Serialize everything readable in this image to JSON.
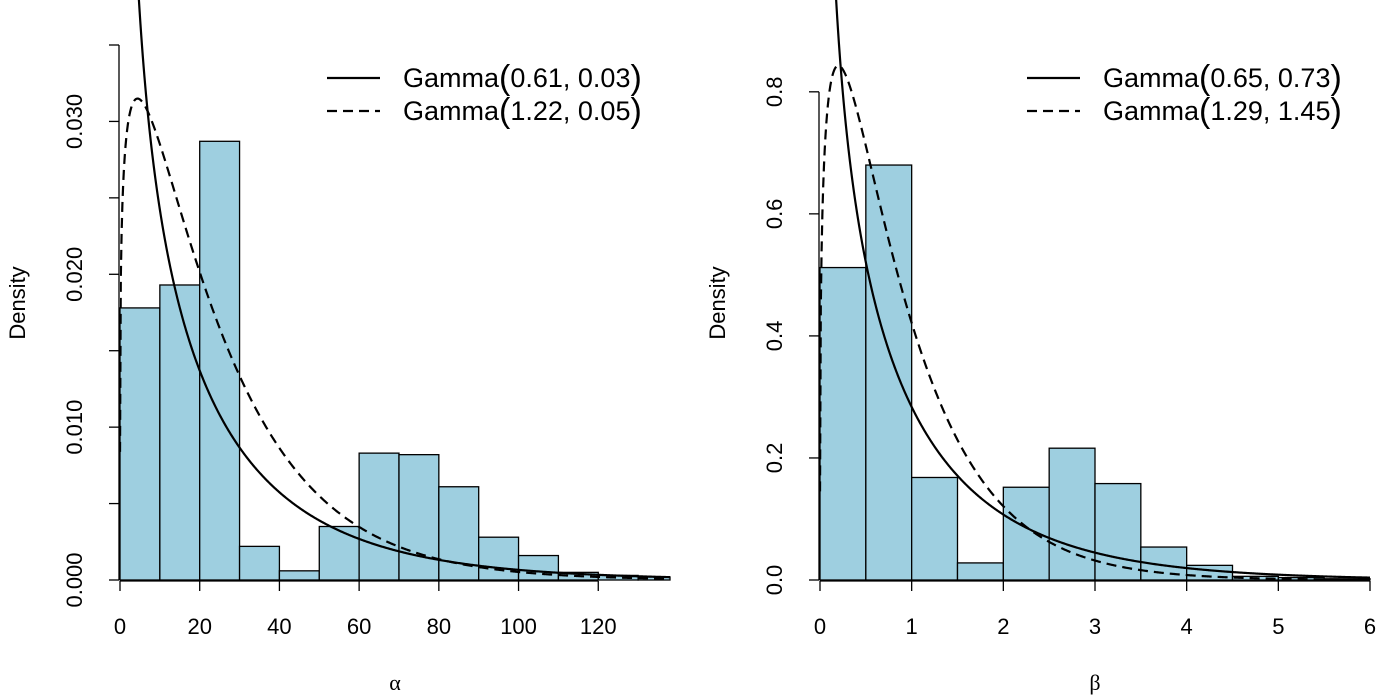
{
  "colors": {
    "bar_fill": "#9ecfe0",
    "bar_stroke": "#000000",
    "line": "#000000"
  },
  "chart_data": [
    {
      "type": "bar",
      "subtype": "histogram-with-density-curves",
      "xlabel": "α",
      "ylabel": "Density",
      "xlim": [
        0,
        138
      ],
      "ylim": [
        0,
        0.035
      ],
      "x_ticks": [
        0,
        20,
        40,
        60,
        80,
        100,
        120
      ],
      "x_tick_labels": [
        "0",
        "20",
        "40",
        "60",
        "80",
        "100",
        "120"
      ],
      "y_ticks": [
        0,
        0.005,
        0.01,
        0.015,
        0.02,
        0.025,
        0.03,
        0.035
      ],
      "y_tick_labels": [
        "0.000",
        "",
        "0.010",
        "",
        "0.020",
        "",
        "0.030",
        ""
      ],
      "bin_width": 10,
      "bin_starts": [
        0,
        10,
        20,
        30,
        40,
        50,
        60,
        70,
        80,
        90,
        100,
        110,
        120,
        130
      ],
      "values": [
        0.0178,
        0.0193,
        0.0287,
        0.0022,
        0.0006,
        0.0035,
        0.0083,
        0.0082,
        0.0061,
        0.0028,
        0.0016,
        0.0005,
        0.0003,
        0.0002
      ],
      "series": [
        {
          "name": "Gamma(0.61, 0.03)",
          "dist": "Gamma",
          "shape": 0.61,
          "rate": 0.03,
          "style": "solid"
        },
        {
          "name": "Gamma(1.22, 0.05)",
          "dist": "Gamma",
          "shape": 1.22,
          "rate": 0.05,
          "style": "dashed"
        }
      ],
      "legend": [
        {
          "prefix": "Gamma",
          "args": "0.61, 0.03"
        },
        {
          "prefix": "Gamma",
          "args": "1.22, 0.05"
        }
      ],
      "legend_position": "top-right"
    },
    {
      "type": "bar",
      "subtype": "histogram-with-density-curves",
      "xlabel": "β",
      "ylabel": "Density",
      "xlim": [
        0,
        6
      ],
      "ylim": [
        0,
        0.88
      ],
      "x_ticks": [
        0,
        1,
        2,
        3,
        4,
        5,
        6
      ],
      "x_tick_labels": [
        "0",
        "1",
        "2",
        "3",
        "4",
        "5",
        "6"
      ],
      "y_ticks": [
        0,
        0.2,
        0.4,
        0.6,
        0.8
      ],
      "y_tick_labels": [
        "0.0",
        "0.2",
        "0.4",
        "0.6",
        "0.8"
      ],
      "bin_width": 0.5,
      "bin_starts": [
        0,
        0.5,
        1,
        1.5,
        2,
        2.5,
        3,
        3.5,
        4,
        4.5,
        5,
        5.5
      ],
      "values": [
        0.512,
        0.68,
        0.168,
        0.028,
        0.152,
        0.216,
        0.158,
        0.054,
        0.024,
        0.006,
        0.004,
        0.002
      ],
      "series": [
        {
          "name": "Gamma(0.65, 0.73)",
          "dist": "Gamma",
          "shape": 0.65,
          "rate": 0.73,
          "style": "solid"
        },
        {
          "name": "Gamma(1.29, 1.45)",
          "dist": "Gamma",
          "shape": 1.29,
          "rate": 1.45,
          "style": "dashed"
        }
      ],
      "legend": [
        {
          "prefix": "Gamma",
          "args": "0.65, 0.73"
        },
        {
          "prefix": "Gamma",
          "args": "1.29, 1.45"
        }
      ],
      "legend_position": "top-right"
    }
  ]
}
